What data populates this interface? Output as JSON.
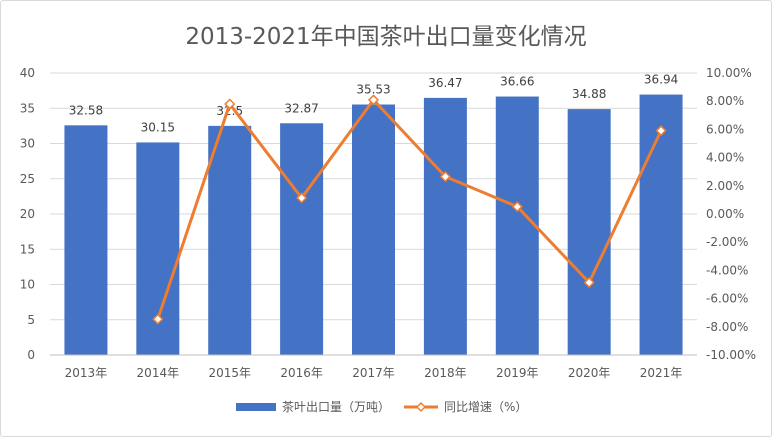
{
  "chart_data": {
    "type": "bar",
    "title": "2013-2021年中国茶叶出口量变化情况",
    "categories": [
      "2013年",
      "2014年",
      "2015年",
      "2016年",
      "2017年",
      "2018年",
      "2019年",
      "2020年",
      "2021年"
    ],
    "series": [
      {
        "name": "茶叶出口量（万吨）",
        "type": "bar",
        "axis": "left",
        "values": [
          32.58,
          30.15,
          32.5,
          32.87,
          35.53,
          36.47,
          36.66,
          34.88,
          36.94
        ],
        "data_labels": [
          "32.58",
          "30.15",
          "32.5",
          "32.87",
          "35.53",
          "36.47",
          "36.66",
          "34.88",
          "36.94"
        ],
        "color": "#4472C4"
      },
      {
        "name": "同比增速（%）",
        "type": "line",
        "axis": "right",
        "values": [
          null,
          -7.46,
          7.8,
          1.14,
          8.09,
          2.65,
          0.52,
          -4.86,
          5.91
        ],
        "color": "#ED7D31"
      }
    ],
    "y_left": {
      "ylim": [
        0,
        40
      ],
      "ticks": [
        0,
        5,
        10,
        15,
        20,
        25,
        30,
        35,
        40
      ],
      "tick_labels": [
        "0",
        "5",
        "10",
        "15",
        "20",
        "25",
        "30",
        "35",
        "40"
      ]
    },
    "y_right": {
      "ylim": [
        -10,
        10
      ],
      "ticks": [
        -10,
        -8,
        -6,
        -4,
        -2,
        0,
        2,
        4,
        6,
        8,
        10
      ],
      "tick_labels": [
        "-10.00%",
        "-8.00%",
        "-6.00%",
        "-4.00%",
        "-2.00%",
        "0.00%",
        "2.00%",
        "4.00%",
        "6.00%",
        "8.00%",
        "10.00%"
      ]
    },
    "grid": true,
    "legend": "bottom"
  }
}
